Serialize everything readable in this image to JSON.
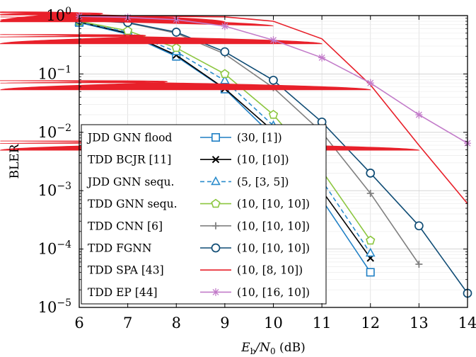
{
  "chart_data": {
    "type": "line",
    "xlabel": "E_b/N_0 (dB)",
    "xlabel_parts": {
      "main": "E",
      "sub": "b",
      "slash": "/N",
      "sub2": "0",
      "unit": " (dB)"
    },
    "ylabel": "BLER",
    "xlim": [
      6,
      14
    ],
    "ylim": [
      1e-05,
      1
    ],
    "yscale": "log",
    "grid": true,
    "legend_position": "bottom-left (inside plot)",
    "x_ticks": [
      6,
      7,
      8,
      9,
      10,
      11,
      12,
      13,
      14
    ],
    "y_ticks": [
      {
        "value": 1,
        "base": "10",
        "exp": "0"
      },
      {
        "value": 0.1,
        "base": "10",
        "exp": "−1"
      },
      {
        "value": 0.01,
        "base": "10",
        "exp": "−2"
      },
      {
        "value": 0.001,
        "base": "10",
        "exp": "−3"
      },
      {
        "value": 0.0001,
        "base": "10",
        "exp": "−4"
      },
      {
        "value": 1e-05,
        "base": "10",
        "exp": "−5"
      }
    ],
    "series": [
      {
        "name": "JDD GNN flood",
        "params": "(30, [1])",
        "color": "#1f7fc4",
        "marker": "square",
        "dash": "solid",
        "x": [
          6,
          7,
          8,
          9,
          10,
          11,
          12
        ],
        "y": [
          0.76,
          0.48,
          0.2,
          0.055,
          0.0085,
          0.0007,
          4e-05
        ]
      },
      {
        "name": "TDD BCJR [11]",
        "params": "(10, [10])",
        "color": "#000000",
        "marker": "x",
        "dash": "solid",
        "x": [
          6,
          7,
          8,
          9,
          10,
          11,
          12
        ],
        "y": [
          0.78,
          0.5,
          0.21,
          0.056,
          0.0105,
          0.001,
          7e-05
        ]
      },
      {
        "name": "JDD GNN sequ.",
        "params": "(5, [3, 5])",
        "color": "#2a8ccc",
        "marker": "triangle",
        "dash": "dashed",
        "x": [
          6,
          7,
          8,
          9,
          10,
          11,
          12
        ],
        "y": [
          0.78,
          0.52,
          0.24,
          0.077,
          0.013,
          0.0015,
          8.5e-05
        ]
      },
      {
        "name": "TDD GNN sequ.",
        "params": "(10, [10, 10])",
        "color": "#8cc63f",
        "marker": "pentagon",
        "dash": "solid",
        "x": [
          6,
          7,
          8,
          9,
          10,
          11,
          12
        ],
        "y": [
          0.8,
          0.55,
          0.28,
          0.1,
          0.02,
          0.0022,
          0.00014
        ]
      },
      {
        "name": "TDD CNN [6]",
        "params": "(10, [10, 10])",
        "color": "#808080",
        "marker": "plus",
        "dash": "solid",
        "x": [
          6,
          7,
          8,
          9,
          10,
          11,
          12,
          13
        ],
        "y": [
          0.85,
          0.75,
          0.5,
          0.22,
          0.058,
          0.01,
          0.0009,
          5.5e-05
        ]
      },
      {
        "name": "TDD FGNN",
        "params": "(10, [10, 10])",
        "color": "#0f4c75",
        "marker": "circle",
        "dash": "solid",
        "x": [
          6,
          7,
          8,
          9,
          10,
          11,
          12,
          13,
          14
        ],
        "y": [
          0.85,
          0.76,
          0.52,
          0.24,
          0.078,
          0.015,
          0.002,
          0.00025,
          1.75e-05
        ]
      },
      {
        "name": "TDD SPA [43]",
        "params": "(10, [8, 10])",
        "color": "#e8202a",
        "marker": "heart",
        "dash": "solid",
        "x": [
          6,
          7,
          8,
          9,
          10,
          11,
          12,
          13,
          14
        ],
        "y": [
          1.0,
          0.98,
          0.97,
          0.95,
          0.8,
          0.4,
          0.065,
          0.006,
          0.0006
        ]
      },
      {
        "name": "TDD EP [44]",
        "params": "(10, [16, 10])",
        "color": "#c27bc9",
        "marker": "star",
        "dash": "solid",
        "x": [
          6,
          7,
          8,
          9,
          10,
          11,
          12,
          13,
          14
        ],
        "y": [
          0.97,
          0.93,
          0.85,
          0.66,
          0.38,
          0.19,
          0.07,
          0.02,
          0.0065
        ]
      }
    ]
  }
}
